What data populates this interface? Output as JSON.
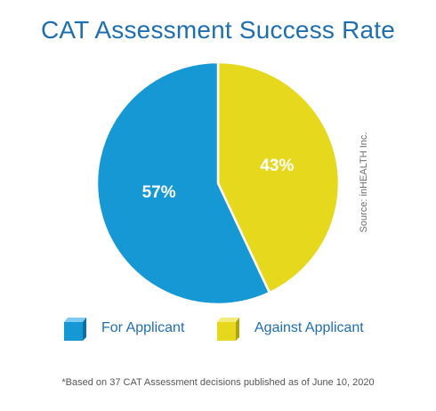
{
  "chart_data": {
    "type": "pie",
    "title": "CAT Assessment Success Rate",
    "slices": [
      {
        "name": "For Applicant",
        "value": 57,
        "label": "57%",
        "color": "#1598d4"
      },
      {
        "name": "Against Applicant",
        "value": 43,
        "label": "43%",
        "color": "#e6d81c"
      }
    ],
    "legend_position": "bottom",
    "source_text": "Source: inHEALTH Inc.",
    "footnote": "*Based on 37 CAT Assessment decisions published as of June 10, 2020"
  },
  "legend": {
    "items": [
      {
        "label": "For Applicant",
        "icon": "blue-cube-icon",
        "color": "#1598d4"
      },
      {
        "label": "Against Applicant",
        "icon": "yellow-cube-icon",
        "color": "#e6d81c"
      }
    ]
  }
}
